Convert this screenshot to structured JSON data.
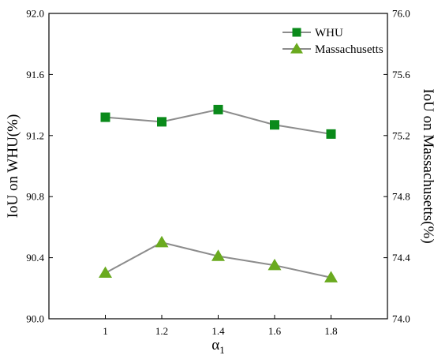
{
  "chart_data": {
    "type": "line",
    "title": "",
    "x": [
      1,
      1.2,
      1.4,
      1.6,
      1.8
    ],
    "x_ticks": [
      "1",
      "1.2",
      "1.4",
      "1.6",
      "1.8"
    ],
    "xlim": [
      0.8,
      2.0
    ],
    "xlabel": {
      "base": "α",
      "sub": "1"
    },
    "ylabel_left": "IoU on WHU(%)",
    "ylabel_right": "IoU on Massachusetts(%)",
    "ylim_left": [
      90.0,
      92.0
    ],
    "ylim_right": [
      74.0,
      76.0
    ],
    "yticks_left": [
      "90.0",
      "90.4",
      "90.8",
      "91.2",
      "91.6",
      "92.0"
    ],
    "yticks_right": [
      "74.0",
      "74.4",
      "74.8",
      "75.2",
      "75.6",
      "76.0"
    ],
    "grid": false,
    "legend_position": "top-right",
    "series": [
      {
        "name": "WHU",
        "axis": "left",
        "marker": "square",
        "marker_color": "#0a8a1a",
        "line_color": "#8c8c8c",
        "values": [
          91.32,
          91.29,
          91.37,
          91.27,
          91.21
        ]
      },
      {
        "name": "Massachusetts",
        "axis": "right",
        "marker": "triangle",
        "marker_color": "#6aaa1f",
        "line_color": "#8c8c8c",
        "values": [
          74.3,
          74.5,
          74.41,
          74.35,
          74.27
        ]
      }
    ]
  }
}
